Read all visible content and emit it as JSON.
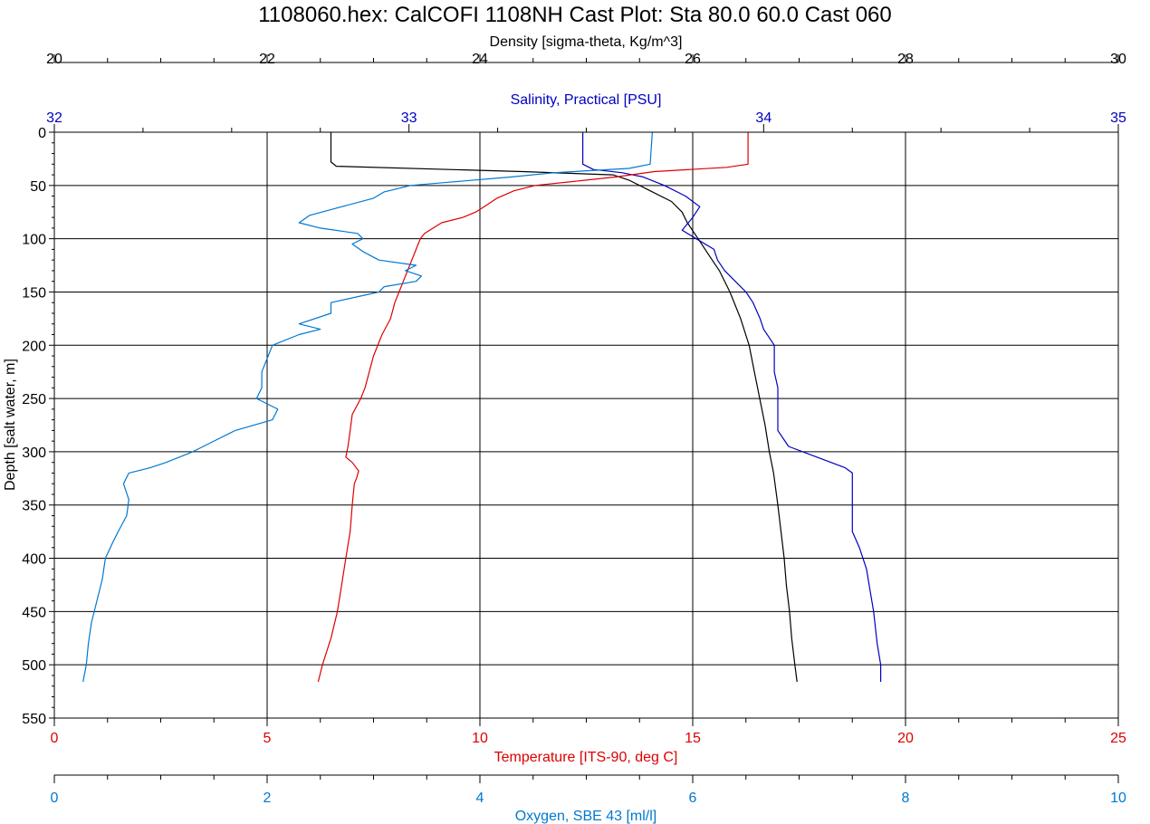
{
  "chart_data": {
    "type": "line",
    "title": "1108060.hex: CalCOFI 1108NH Cast Plot: Sta 80.0 60.0 Cast 060",
    "grid": true,
    "depth_axis": {
      "label": "Depth [salt water, m]",
      "range": [
        0,
        550
      ],
      "ticks": [
        "0",
        "50",
        "100",
        "150",
        "200",
        "250",
        "300",
        "350",
        "400",
        "450",
        "500",
        "550"
      ],
      "inverted": true
    },
    "axes": [
      {
        "key": "density",
        "label": "Density [sigma-theta, Kg/m^3]",
        "range": [
          20,
          30
        ],
        "ticks": [
          "20",
          "22",
          "24",
          "26",
          "28",
          "30"
        ],
        "color": "#000000",
        "position": "top"
      },
      {
        "key": "salinity",
        "label": "Salinity, Practical [PSU]",
        "range": [
          32,
          35
        ],
        "ticks": [
          "32",
          "33",
          "34",
          "35"
        ],
        "color": "#0000c0",
        "position": "top"
      },
      {
        "key": "temperature",
        "label": "Temperature [ITS-90, deg C]",
        "range": [
          0,
          25
        ],
        "ticks": [
          "0",
          "5",
          "10",
          "15",
          "20",
          "25"
        ],
        "color": "#dd0000",
        "position": "bottom"
      },
      {
        "key": "oxygen",
        "label": "Oxygen, SBE 43 [ml/l]",
        "range": [
          0,
          10
        ],
        "ticks": [
          "0",
          "2",
          "4",
          "6",
          "8",
          "10"
        ],
        "color": "#0078d0",
        "position": "bottom"
      }
    ],
    "series": [
      {
        "axis": "density",
        "color": "#000000",
        "points": [
          [
            0,
            22.6
          ],
          [
            28,
            22.6
          ],
          [
            32,
            22.65
          ],
          [
            37,
            24.4
          ],
          [
            40,
            25.25
          ],
          [
            45,
            25.4
          ],
          [
            55,
            25.6
          ],
          [
            65,
            25.8
          ],
          [
            75,
            25.9
          ],
          [
            85,
            25.95
          ],
          [
            100,
            26.05
          ],
          [
            115,
            26.15
          ],
          [
            130,
            26.25
          ],
          [
            150,
            26.35
          ],
          [
            175,
            26.45
          ],
          [
            200,
            26.53
          ],
          [
            225,
            26.58
          ],
          [
            250,
            26.63
          ],
          [
            275,
            26.68
          ],
          [
            300,
            26.72
          ],
          [
            320,
            26.76
          ],
          [
            350,
            26.8
          ],
          [
            375,
            26.83
          ],
          [
            400,
            26.86
          ],
          [
            425,
            26.88
          ],
          [
            450,
            26.91
          ],
          [
            475,
            26.93
          ],
          [
            500,
            26.96
          ],
          [
            516,
            26.98
          ]
        ]
      },
      {
        "axis": "salinity",
        "color": "#0000c0",
        "points": [
          [
            0,
            33.49
          ],
          [
            30,
            33.49
          ],
          [
            35,
            33.52
          ],
          [
            38,
            33.6
          ],
          [
            42,
            33.66
          ],
          [
            50,
            33.72
          ],
          [
            60,
            33.78
          ],
          [
            70,
            33.82
          ],
          [
            80,
            33.8
          ],
          [
            88,
            33.78
          ],
          [
            92,
            33.77
          ],
          [
            98,
            33.8
          ],
          [
            110,
            33.86
          ],
          [
            120,
            33.87
          ],
          [
            130,
            33.89
          ],
          [
            140,
            33.92
          ],
          [
            150,
            33.95
          ],
          [
            160,
            33.97
          ],
          [
            175,
            33.99
          ],
          [
            185,
            34.0
          ],
          [
            200,
            34.03
          ],
          [
            225,
            34.03
          ],
          [
            240,
            34.04
          ],
          [
            250,
            34.04
          ],
          [
            265,
            34.04
          ],
          [
            280,
            34.04
          ],
          [
            295,
            34.07
          ],
          [
            305,
            34.15
          ],
          [
            315,
            34.23
          ],
          [
            320,
            34.25
          ],
          [
            330,
            34.25
          ],
          [
            350,
            34.25
          ],
          [
            375,
            34.25
          ],
          [
            390,
            34.27
          ],
          [
            410,
            34.29
          ],
          [
            430,
            34.3
          ],
          [
            450,
            34.31
          ],
          [
            480,
            34.32
          ],
          [
            500,
            34.33
          ],
          [
            516,
            34.33
          ]
        ]
      },
      {
        "axis": "temperature",
        "color": "#dd0000",
        "points": [
          [
            0,
            16.3
          ],
          [
            30,
            16.3
          ],
          [
            33,
            15.8
          ],
          [
            37,
            14.1
          ],
          [
            42,
            13.2
          ],
          [
            45,
            12.5
          ],
          [
            50,
            11.3
          ],
          [
            55,
            10.8
          ],
          [
            62,
            10.4
          ],
          [
            70,
            10.1
          ],
          [
            75,
            9.9
          ],
          [
            80,
            9.6
          ],
          [
            85,
            9.1
          ],
          [
            90,
            8.9
          ],
          [
            95,
            8.7
          ],
          [
            100,
            8.6
          ],
          [
            110,
            8.5
          ],
          [
            120,
            8.4
          ],
          [
            130,
            8.3
          ],
          [
            140,
            8.2
          ],
          [
            150,
            8.1
          ],
          [
            160,
            8.0
          ],
          [
            175,
            7.9
          ],
          [
            190,
            7.7
          ],
          [
            200,
            7.6
          ],
          [
            210,
            7.5
          ],
          [
            225,
            7.4
          ],
          [
            240,
            7.3
          ],
          [
            250,
            7.2
          ],
          [
            265,
            7.0
          ],
          [
            280,
            6.95
          ],
          [
            295,
            6.9
          ],
          [
            305,
            6.85
          ],
          [
            310,
            7.0
          ],
          [
            318,
            7.15
          ],
          [
            325,
            7.1
          ],
          [
            330,
            7.05
          ],
          [
            350,
            7.0
          ],
          [
            375,
            6.95
          ],
          [
            400,
            6.85
          ],
          [
            425,
            6.75
          ],
          [
            450,
            6.65
          ],
          [
            475,
            6.5
          ],
          [
            500,
            6.3
          ],
          [
            516,
            6.2
          ]
        ]
      },
      {
        "axis": "oxygen",
        "color": "#0078d0",
        "points": [
          [
            0,
            5.62
          ],
          [
            30,
            5.6
          ],
          [
            34,
            5.4
          ],
          [
            38,
            4.7
          ],
          [
            42,
            4.3
          ],
          [
            47,
            3.7
          ],
          [
            50,
            3.35
          ],
          [
            56,
            3.1
          ],
          [
            62,
            3.0
          ],
          [
            70,
            2.7
          ],
          [
            78,
            2.4
          ],
          [
            85,
            2.3
          ],
          [
            90,
            2.5
          ],
          [
            95,
            2.85
          ],
          [
            100,
            2.9
          ],
          [
            105,
            2.8
          ],
          [
            112,
            2.9
          ],
          [
            120,
            3.05
          ],
          [
            125,
            3.4
          ],
          [
            130,
            3.3
          ],
          [
            135,
            3.45
          ],
          [
            140,
            3.4
          ],
          [
            145,
            3.1
          ],
          [
            150,
            3.05
          ],
          [
            160,
            2.6
          ],
          [
            170,
            2.6
          ],
          [
            180,
            2.3
          ],
          [
            185,
            2.5
          ],
          [
            190,
            2.3
          ],
          [
            200,
            2.05
          ],
          [
            225,
            1.95
          ],
          [
            240,
            1.95
          ],
          [
            250,
            1.9
          ],
          [
            260,
            2.1
          ],
          [
            270,
            2.05
          ],
          [
            280,
            1.7
          ],
          [
            290,
            1.5
          ],
          [
            300,
            1.3
          ],
          [
            310,
            1.05
          ],
          [
            315,
            0.9
          ],
          [
            320,
            0.7
          ],
          [
            330,
            0.65
          ],
          [
            345,
            0.7
          ],
          [
            360,
            0.68
          ],
          [
            375,
            0.6
          ],
          [
            385,
            0.55
          ],
          [
            400,
            0.48
          ],
          [
            420,
            0.45
          ],
          [
            440,
            0.4
          ],
          [
            460,
            0.35
          ],
          [
            480,
            0.32
          ],
          [
            500,
            0.3
          ],
          [
            516,
            0.27
          ]
        ]
      }
    ]
  }
}
